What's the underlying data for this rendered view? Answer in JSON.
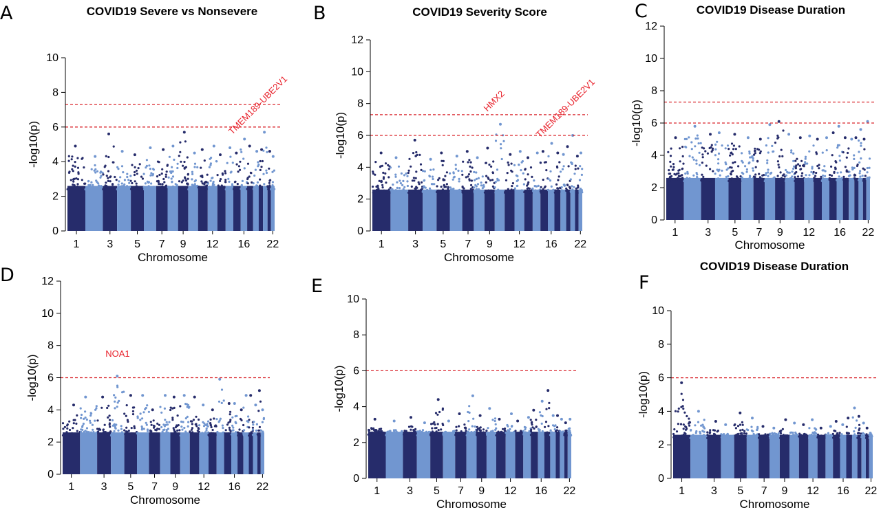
{
  "colors": {
    "dark": "#262c6b",
    "light": "#7196d0",
    "threshold": "#d9242b",
    "gene": "#e8202a"
  },
  "chart_data": [
    {
      "panel": "A",
      "type": "scatter",
      "title": "COVID19 Severe vs Nonsevere",
      "xlabel": "Chromosome",
      "ylabel": "-log10(p)",
      "ylim": [
        0,
        10
      ],
      "yticks": [
        0,
        2,
        4,
        6,
        8,
        10
      ],
      "xtick_labels": [
        "1",
        "3",
        "5",
        "7",
        "9",
        "12",
        "16",
        "22"
      ],
      "thresholds": [
        7.3,
        6.0
      ],
      "annotations": [
        {
          "text": "TMEM189-UBE2V1",
          "chromosome": 20,
          "value": 5.7
        }
      ],
      "chromosome_peaks": [
        4.9,
        4.3,
        5.6,
        4.6,
        4.4,
        4.8,
        4.7,
        4.9,
        5.7,
        4.5,
        4.7,
        4.9,
        4.4,
        4.8,
        4.5,
        5.3,
        4.9,
        4.6,
        4.7,
        5.7,
        4.6,
        4.3
      ]
    },
    {
      "panel": "B",
      "type": "scatter",
      "title": "COVID19 Severity Score",
      "xlabel": "Chromosome",
      "ylabel": "-log10(p)",
      "ylim": [
        0,
        12
      ],
      "yticks": [
        0,
        2,
        4,
        6,
        8,
        10,
        12
      ],
      "xtick_labels": [
        "1",
        "3",
        "5",
        "7",
        "9",
        "12",
        "16",
        "22"
      ],
      "thresholds": [
        7.3,
        6.0
      ],
      "annotations": [
        {
          "text": "HMX2",
          "chromosome": 10,
          "value": 6.7
        },
        {
          "text": "TMEM189-UBE2V1",
          "chromosome": 20,
          "value": 6.0
        }
      ],
      "chromosome_peaks": [
        4.9,
        4.6,
        5.7,
        4.5,
        4.9,
        4.7,
        5.0,
        4.6,
        5.2,
        6.7,
        4.8,
        5.0,
        4.6,
        4.9,
        5.0,
        5.5,
        4.9,
        4.8,
        5.3,
        6.0,
        4.7,
        4.9
      ]
    },
    {
      "panel": "C",
      "type": "scatter",
      "title": "COVID19 Disease Duration",
      "xlabel": "Chromosome",
      "ylabel": "-log10(p)",
      "ylim": [
        0,
        12
      ],
      "yticks": [
        0,
        2,
        4,
        6,
        8,
        10,
        12
      ],
      "xtick_labels": [
        "1",
        "3",
        "5",
        "7",
        "9",
        "12",
        "16",
        "22"
      ],
      "thresholds": [
        7.3,
        6.0
      ],
      "annotations": [],
      "chromosome_peaks": [
        5.1,
        5.8,
        5.3,
        5.4,
        5.3,
        5.1,
        5.0,
        5.9,
        6.1,
        5.3,
        5.1,
        5.2,
        5.0,
        5.1,
        5.4,
        5.8,
        5.1,
        5.0,
        5.1,
        5.6,
        5.0,
        6.1
      ]
    },
    {
      "panel": "D",
      "type": "scatter",
      "title": "",
      "xlabel": "Chromosome",
      "ylabel": "-log10(p)",
      "ylim": [
        0,
        12
      ],
      "yticks": [
        0,
        2,
        4,
        6,
        8,
        10,
        12
      ],
      "xtick_labels": [
        "1",
        "3",
        "5",
        "7",
        "9",
        "12",
        "16",
        "22"
      ],
      "thresholds": [
        6.0
      ],
      "annotations": [
        {
          "text": "NOA1",
          "chromosome": 4,
          "value": 6.1
        }
      ],
      "chromosome_peaks": [
        4.3,
        4.8,
        4.8,
        6.1,
        4.9,
        4.9,
        4.0,
        4.9,
        4.8,
        4.9,
        4.8,
        4.3,
        4.0,
        5.9,
        4.4,
        4.4,
        4.0,
        4.9,
        4.9,
        4.3,
        5.2,
        4.0
      ]
    },
    {
      "panel": "E",
      "type": "scatter",
      "title": "",
      "xlabel": "Chromosome",
      "ylabel": "-log10(p)",
      "ylim": [
        0,
        10
      ],
      "yticks": [
        0,
        2,
        4,
        6,
        8,
        10
      ],
      "xtick_labels": [
        "1",
        "3",
        "5",
        "7",
        "9",
        "12",
        "16",
        "22"
      ],
      "thresholds": [
        6.0
      ],
      "annotations": [],
      "chromosome_peaks": [
        3.3,
        3.2,
        3.4,
        3.1,
        4.4,
        3.2,
        3.6,
        4.6,
        3.5,
        3.9,
        3.3,
        3.6,
        3.2,
        3.4,
        3.8,
        4.3,
        4.9,
        3.5,
        3.5,
        3.3,
        3.1,
        3.3
      ]
    },
    {
      "panel": "F",
      "type": "scatter",
      "title": "COVID19 Disease Duration",
      "xlabel": "Chromosome",
      "ylabel": "-log10(p)",
      "ylim": [
        0,
        10
      ],
      "yticks": [
        0,
        2,
        4,
        6,
        8,
        10
      ],
      "xtick_labels": [
        "1",
        "3",
        "5",
        "7",
        "9",
        "12",
        "16",
        "22"
      ],
      "thresholds": [
        6.0
      ],
      "annotations": [],
      "chromosome_peaks": [
        5.7,
        4.0,
        3.4,
        3.2,
        3.9,
        3.6,
        3.1,
        3.0,
        3.5,
        3.3,
        3.2,
        3.5,
        3.0,
        3.1,
        3.4,
        3.2,
        3.6,
        4.2,
        3.7,
        3.3,
        3.0,
        2.7
      ]
    }
  ]
}
